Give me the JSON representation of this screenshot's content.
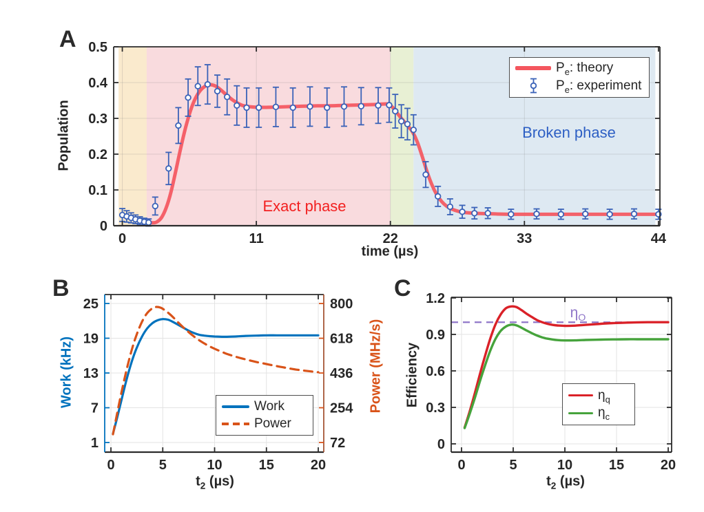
{
  "panels": {
    "a": {
      "letter": "A"
    },
    "b": {
      "letter": "B"
    },
    "c": {
      "letter": "C"
    }
  },
  "colors": {
    "theory_red": "#F4565E",
    "experiment_blue": "#3A62B8",
    "work_blue": "#0072BD",
    "power_orange": "#D95319",
    "eta_q_red": "#DA2128",
    "eta_c_green": "#46A33C",
    "otto_purple": "#8F76C8"
  },
  "chart_data": [
    {
      "panel_label": "A",
      "type": "line",
      "xlabel": "time (µs)",
      "ylabel": "Population",
      "xlim": [
        -0.71,
        44.12
      ],
      "ylim": [
        0,
        0.5
      ],
      "xticks": [
        0,
        11,
        22,
        33,
        44
      ],
      "yticks": [
        0,
        0.1,
        0.2,
        0.3,
        0.4,
        0.5
      ],
      "grid": true,
      "regions": [
        {
          "name": "initial",
          "x0": -0.31,
          "x1": 2.0,
          "color": "#FAEACD"
        },
        {
          "name": "exact",
          "x0": 2.0,
          "x1": 22.0,
          "color": "#F9DBDE"
        },
        {
          "name": "transition",
          "x0": 22.0,
          "x1": 23.9,
          "color": "#E8F0D4"
        },
        {
          "name": "broken",
          "x0": 23.9,
          "x1": 43.75,
          "color": "#DEE9F2"
        }
      ],
      "annotations": [
        {
          "text": "Exact phase",
          "x": 15.0,
          "y": 0.046,
          "color": "#F22020"
        },
        {
          "text": "Broken phase",
          "x": 36.8,
          "y": 0.26,
          "color": "#2D5FC4"
        }
      ],
      "series": [
        {
          "name": "P_{e}: theory",
          "style": "solid",
          "color": "#F4565E",
          "width": 5,
          "opacity": 0.92,
          "smooth": true,
          "x": [
            0,
            0.4,
            0.8,
            1.2,
            1.6,
            2.0,
            2.4,
            2.8,
            3.2,
            3.6,
            4.0,
            4.4,
            4.8,
            5.2,
            5.6,
            6.0,
            6.4,
            6.8,
            7.2,
            7.6,
            8.0,
            8.4,
            8.8,
            9.2,
            9.6,
            10,
            11,
            12,
            13,
            14,
            15,
            16,
            17,
            18,
            19,
            20,
            21,
            21.8,
            22.2,
            22.6,
            23.0,
            23.4,
            23.8,
            24.2,
            24.6,
            25.0,
            25.4,
            25.8,
            26.2,
            26.6,
            27.0,
            27.6,
            28.4,
            29.4,
            30.5,
            32,
            34,
            36,
            38,
            40,
            42,
            44
          ],
          "y": [
            0.03,
            0.025,
            0.02,
            0.015,
            0.011,
            0.009,
            0.008,
            0.01,
            0.022,
            0.05,
            0.095,
            0.155,
            0.218,
            0.275,
            0.322,
            0.356,
            0.378,
            0.39,
            0.394,
            0.391,
            0.382,
            0.37,
            0.358,
            0.348,
            0.34,
            0.335,
            0.331,
            0.331,
            0.332,
            0.333,
            0.334,
            0.335,
            0.335,
            0.336,
            0.337,
            0.338,
            0.339,
            0.34,
            0.33,
            0.313,
            0.296,
            0.28,
            0.263,
            0.235,
            0.195,
            0.152,
            0.115,
            0.087,
            0.068,
            0.055,
            0.047,
            0.04,
            0.036,
            0.034,
            0.033,
            0.032,
            0.032,
            0.032,
            0.032,
            0.032,
            0.032,
            0.032
          ]
        },
        {
          "name": "P_{e}: experiment",
          "style": "errorbar",
          "color": "#3A62B8",
          "markersize": 8,
          "x": [
            0,
            0.36,
            0.72,
            1.08,
            1.44,
            1.8,
            2.16,
            2.7,
            3.8,
            4.6,
            5.4,
            6.2,
            7.0,
            7.8,
            8.6,
            9.4,
            10.2,
            11.2,
            12.6,
            14.0,
            15.4,
            16.8,
            18.2,
            19.6,
            21.0,
            21.9,
            22.4,
            22.9,
            23.4,
            23.9,
            24.9,
            25.9,
            26.9,
            27.9,
            28.9,
            30.0,
            31.9,
            34.0,
            36.0,
            38.0,
            40.0,
            42.0,
            44.0
          ],
          "y": [
            0.03,
            0.026,
            0.022,
            0.018,
            0.014,
            0.011,
            0.009,
            0.055,
            0.16,
            0.28,
            0.358,
            0.39,
            0.395,
            0.376,
            0.36,
            0.336,
            0.33,
            0.33,
            0.332,
            0.33,
            0.333,
            0.33,
            0.333,
            0.334,
            0.336,
            0.337,
            0.32,
            0.292,
            0.284,
            0.268,
            0.143,
            0.082,
            0.053,
            0.039,
            0.035,
            0.035,
            0.032,
            0.033,
            0.032,
            0.033,
            0.032,
            0.033,
            0.032
          ],
          "yerr": [
            0.018,
            0.016,
            0.014,
            0.012,
            0.011,
            0.01,
            0.01,
            0.025,
            0.045,
            0.05,
            0.052,
            0.054,
            0.055,
            0.045,
            0.05,
            0.055,
            0.055,
            0.055,
            0.055,
            0.055,
            0.055,
            0.055,
            0.055,
            0.052,
            0.05,
            0.048,
            0.047,
            0.046,
            0.044,
            0.042,
            0.036,
            0.028,
            0.022,
            0.018,
            0.016,
            0.015,
            0.014,
            0.014,
            0.014,
            0.014,
            0.014,
            0.014,
            0.014
          ]
        }
      ],
      "legend": {
        "position": "top-right"
      }
    },
    {
      "panel_label": "B",
      "type": "line",
      "xlabel": "t_{2} (µs)",
      "xlim": [
        -0.6,
        20.53
      ],
      "xticks": [
        0,
        5,
        10,
        15,
        20
      ],
      "axes": {
        "left": {
          "label": "Work (kHz)",
          "color": "#0072BD",
          "ylim": [
            -0.66,
            26.54
          ],
          "yticks": [
            1,
            7,
            13,
            19,
            25
          ]
        },
        "right": {
          "label": "Power (MHz/s)",
          "color": "#D95319",
          "ylim": [
            21.5,
            847
          ],
          "yticks": [
            72,
            254,
            436,
            618,
            800
          ]
        }
      },
      "grid": true,
      "series": [
        {
          "name": "Work",
          "axis": "left",
          "style": "solid",
          "color": "#0072BD",
          "width": 3.2,
          "smooth": true,
          "x": [
            0.2,
            0.6,
            1.0,
            1.5,
            2.0,
            2.5,
            3.0,
            3.5,
            4.0,
            4.5,
            5.0,
            5.5,
            6.0,
            6.5,
            7.0,
            7.5,
            8.0,
            8.5,
            9.0,
            9.5,
            10,
            11,
            12,
            13,
            14,
            15,
            16,
            17,
            18,
            19,
            20
          ],
          "y": [
            2.5,
            5.3,
            8.2,
            11.8,
            14.9,
            17.4,
            19.3,
            20.7,
            21.6,
            22.1,
            22.3,
            22.2,
            21.8,
            21.3,
            20.8,
            20.3,
            19.9,
            19.6,
            19.45,
            19.35,
            19.3,
            19.25,
            19.3,
            19.4,
            19.45,
            19.5,
            19.5,
            19.5,
            19.5,
            19.5,
            19.5
          ]
        },
        {
          "name": "Power",
          "axis": "right",
          "style": "dashed",
          "color": "#D95319",
          "width": 3.2,
          "smooth": true,
          "x": [
            0.2,
            0.6,
            1.0,
            1.5,
            2.0,
            2.5,
            3.0,
            3.5,
            4.0,
            4.4,
            4.8,
            5.2,
            5.6,
            6.0,
            6.5,
            7.0,
            7.5,
            8.0,
            8.5,
            9.0,
            9.5,
            10,
            11,
            12,
            13,
            14,
            15,
            16,
            17,
            18,
            19,
            20
          ],
          "y": [
            115,
            225,
            330,
            450,
            555,
            640,
            705,
            750,
            775,
            782,
            778,
            765,
            748,
            728,
            700,
            674,
            650,
            628,
            608,
            591,
            576,
            563,
            540,
            522,
            507,
            494,
            483,
            472,
            462,
            453,
            446,
            440
          ]
        }
      ],
      "legend": {
        "position": "bottom-right"
      }
    },
    {
      "panel_label": "C",
      "type": "line",
      "xlabel": "t_{2} (µs)",
      "ylabel": "Efficiency",
      "xlim": [
        -1.0,
        20.33
      ],
      "ylim": [
        -0.068,
        1.205
      ],
      "xticks": [
        0,
        5,
        10,
        15,
        20
      ],
      "yticks": [
        0,
        0.3,
        0.6,
        0.9,
        1.2
      ],
      "grid": true,
      "hlines": [
        {
          "y": 1.0,
          "style": "dashed",
          "width": 2.2,
          "color": "#8F76C8",
          "label": "η_{O}"
        }
      ],
      "series": [
        {
          "name": "η_{q}",
          "style": "solid",
          "color": "#DA2128",
          "width": 3.4,
          "smooth": true,
          "x": [
            0.3,
            0.8,
            1.3,
            1.8,
            2.3,
            2.8,
            3.3,
            3.8,
            4.3,
            4.8,
            5.3,
            5.8,
            6.3,
            6.8,
            7.3,
            7.8,
            8.3,
            8.8,
            9.3,
            10,
            11,
            12,
            13,
            14,
            15,
            16,
            17,
            18,
            19,
            20
          ],
          "y": [
            0.135,
            0.27,
            0.42,
            0.58,
            0.73,
            0.87,
            0.985,
            1.065,
            1.115,
            1.13,
            1.125,
            1.1,
            1.07,
            1.043,
            1.018,
            1.0,
            0.987,
            0.978,
            0.973,
            0.97,
            0.972,
            0.978,
            0.984,
            0.99,
            0.994,
            0.997,
            0.999,
            1.0,
            1.0,
            1.0
          ]
        },
        {
          "name": "η_{c}",
          "style": "solid",
          "color": "#46A33C",
          "width": 3.4,
          "smooth": true,
          "x": [
            0.3,
            0.8,
            1.3,
            1.8,
            2.3,
            2.8,
            3.3,
            3.8,
            4.3,
            4.8,
            5.3,
            5.8,
            6.3,
            6.8,
            7.3,
            7.8,
            8.3,
            8.8,
            9.3,
            10,
            11,
            12,
            13,
            14,
            15,
            16,
            17,
            18,
            19,
            20
          ],
          "y": [
            0.13,
            0.25,
            0.38,
            0.52,
            0.65,
            0.77,
            0.865,
            0.93,
            0.965,
            0.98,
            0.975,
            0.955,
            0.932,
            0.91,
            0.891,
            0.876,
            0.865,
            0.858,
            0.853,
            0.85,
            0.851,
            0.854,
            0.856,
            0.858,
            0.859,
            0.86,
            0.86,
            0.86,
            0.86,
            0.86
          ]
        }
      ],
      "legend": {
        "position": "bottom-right"
      }
    }
  ]
}
